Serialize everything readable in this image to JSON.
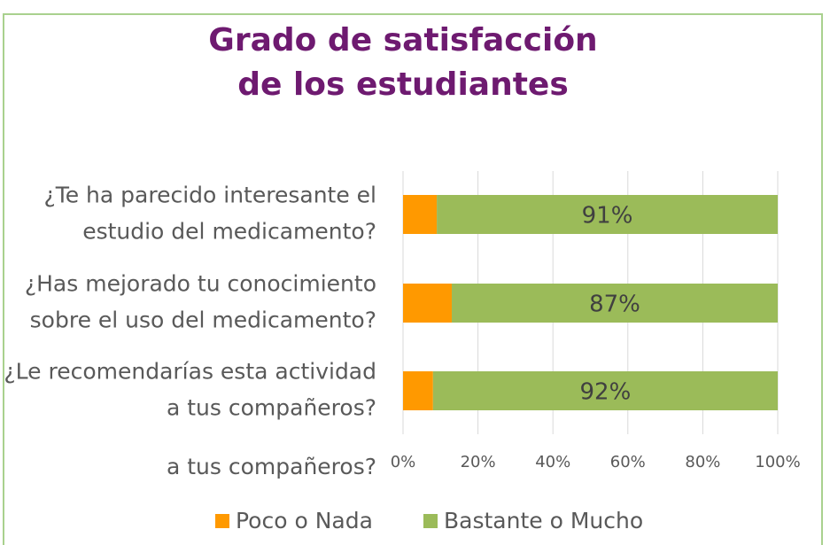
{
  "chart_data": {
    "type": "stacked_barh",
    "title": "Grado de satisfacción\nde los estudiantes",
    "categories": [
      "¿Te ha parecido interesante el\nestudio del medicamento?",
      "¿Has mejorado tu conocimiento\nsobre el uso del medicamento?",
      "¿Le recomendarías esta actividad\na tus compañeros?"
    ],
    "series": [
      {
        "name": "Poco o Nada",
        "color": "#ff9900",
        "values": [
          9,
          13,
          8
        ]
      },
      {
        "name": "Bastante o Mucho",
        "color": "#9bbb59",
        "values": [
          91,
          87,
          92
        ],
        "value_labels": [
          "91%",
          "87%",
          "92%"
        ]
      }
    ],
    "xlim": [
      0,
      100
    ],
    "xticks": [
      {
        "value": 0,
        "label": "0%"
      },
      {
        "value": 20,
        "label": "20%"
      },
      {
        "value": 40,
        "label": "40%"
      },
      {
        "value": 60,
        "label": "60%"
      },
      {
        "value": 80,
        "label": "80%"
      },
      {
        "value": 100,
        "label": "100%"
      }
    ],
    "grid": true,
    "legend": "bottom",
    "annotation": "a tus compañeros?"
  }
}
